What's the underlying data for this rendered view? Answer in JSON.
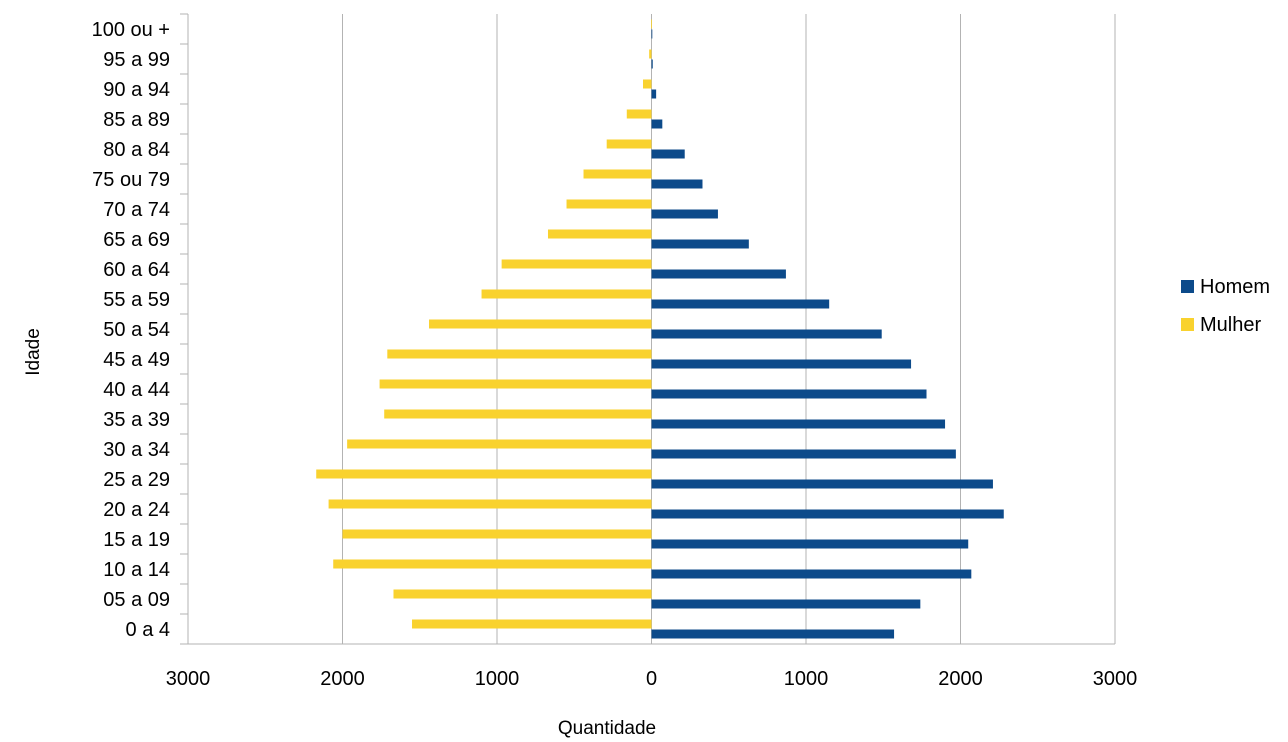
{
  "chart_data": {
    "type": "bar",
    "orientation": "horizontal",
    "categories": [
      "0 a 4",
      "05 a 09",
      "10 a 14",
      "15 a 19",
      "20 a 24",
      "25 a 29",
      "30 a 34",
      "35 a 39",
      "40 a 44",
      "45 a 49",
      "50 a 54",
      "55 a 59",
      "60 a 64",
      "65 a 69",
      "70 a 74",
      "75 ou 79",
      "80 a 84",
      "85 a 89",
      "90 a 94",
      "95 a 99",
      "100 ou +"
    ],
    "series": [
      {
        "name": "Homem",
        "color": "#0c4a8a",
        "values": [
          1570,
          1740,
          2070,
          2050,
          2280,
          2210,
          1970,
          1900,
          1780,
          1680,
          1490,
          1150,
          870,
          630,
          430,
          330,
          215,
          70,
          30,
          8,
          2
        ]
      },
      {
        "name": "Mulher",
        "color": "#f9d22e",
        "values": [
          -1550,
          -1670,
          -2060,
          -2000,
          -2090,
          -2170,
          -1970,
          -1730,
          -1760,
          -1710,
          -1440,
          -1100,
          -970,
          -670,
          -550,
          -440,
          -290,
          -160,
          -55,
          -15,
          -3
        ]
      }
    ],
    "x_tick_labels": [
      "3000",
      "2000",
      "1000",
      "0",
      "1000",
      "2000",
      "3000"
    ],
    "xlim": [
      -3000,
      3000
    ],
    "xlabel": "Quantidade",
    "ylabel": "Idade",
    "grid": "vertical",
    "legend": "right"
  }
}
